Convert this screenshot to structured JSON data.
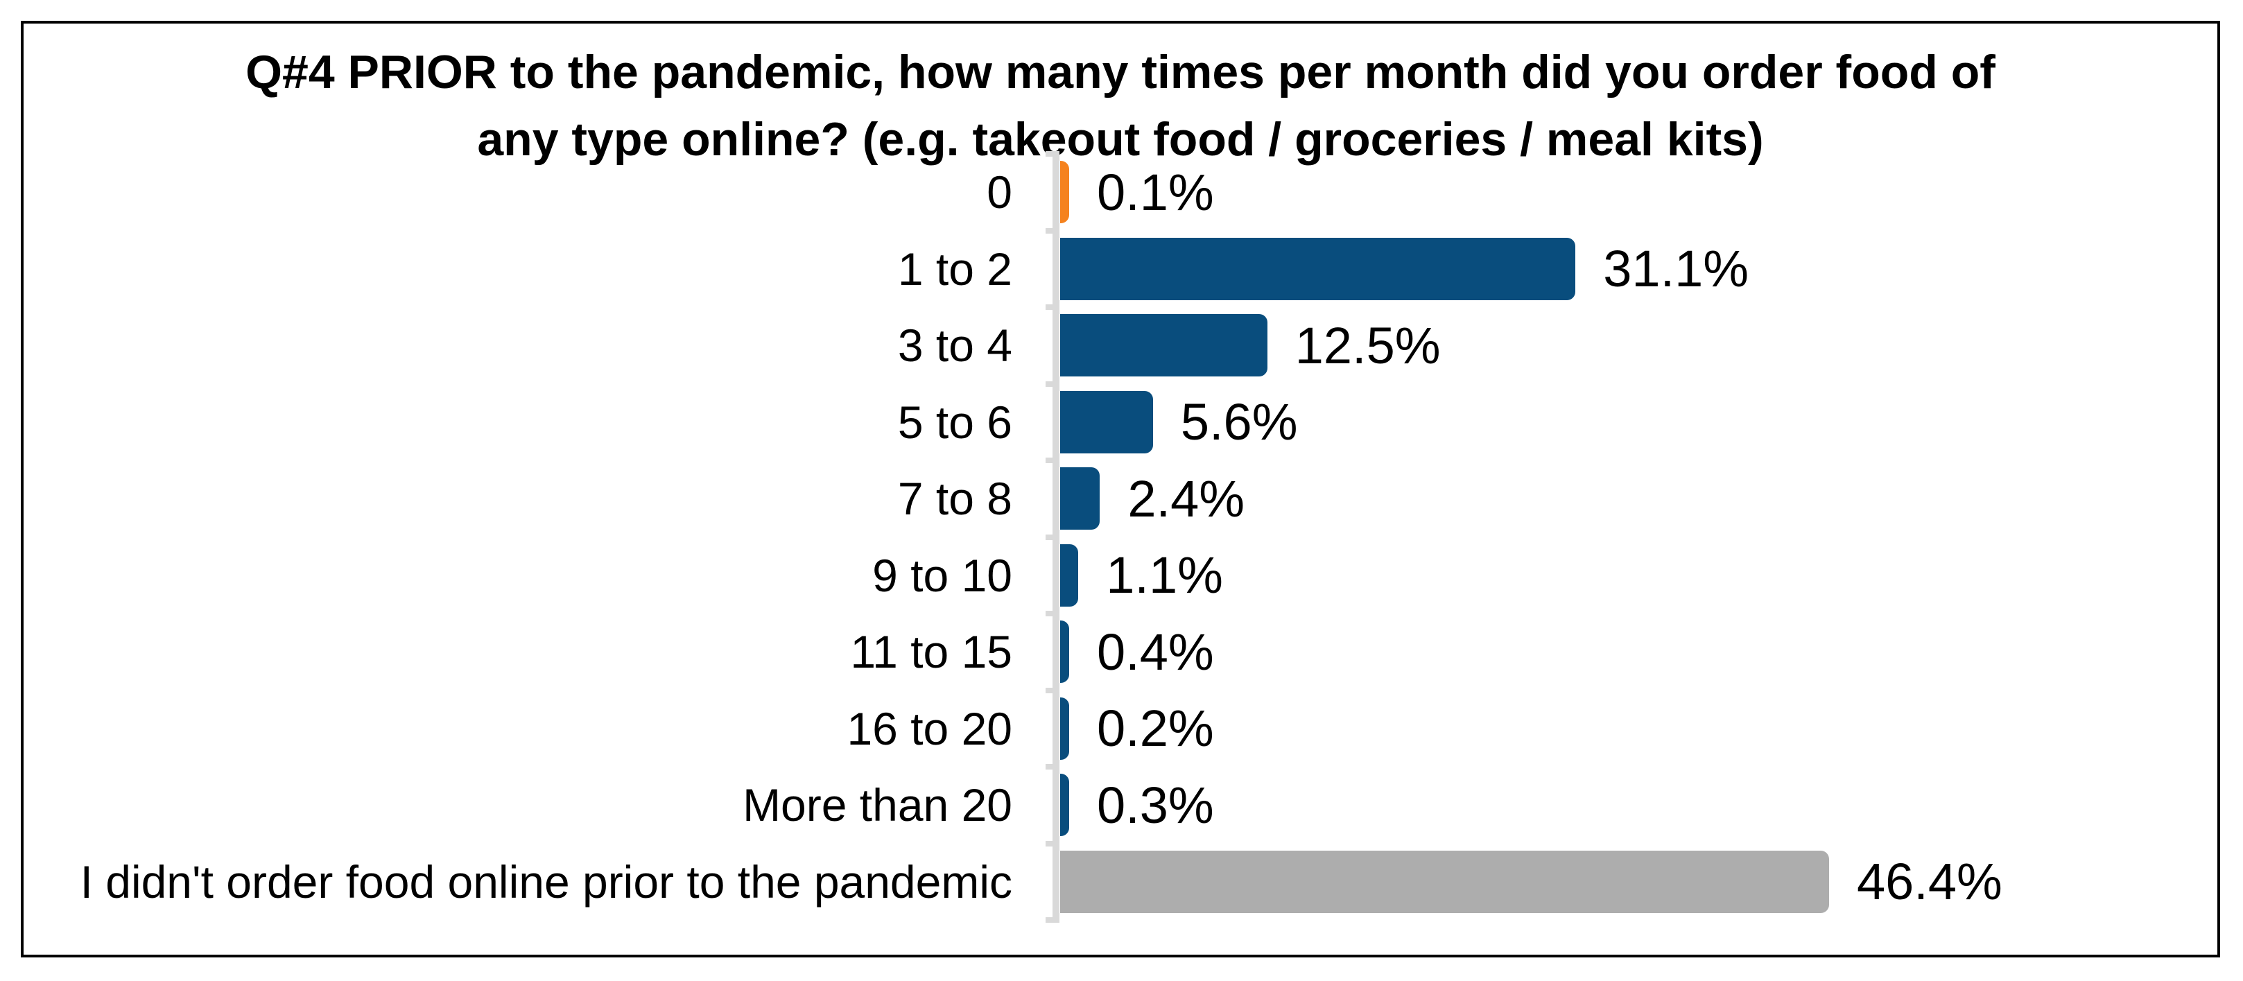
{
  "chart_data": {
    "type": "bar",
    "orientation": "horizontal",
    "title": "Q#4 PRIOR to the pandemic, how many times per month did you order food of any type online? (e.g. takeout food / groceries / meal kits)",
    "title_lines": [
      "Q#4 PRIOR to the pandemic, how many times per month did you order food of",
      "any type online? (e.g. takeout food / groceries / meal kits)"
    ],
    "categories": [
      "0",
      "1 to 2",
      "3 to 4",
      "5 to 6",
      "7 to 8",
      "9 to 10",
      "11 to 15",
      "16 to 20",
      "More than 20",
      "I didn't order food online prior to the pandemic"
    ],
    "values": [
      0.1,
      31.1,
      12.5,
      5.6,
      2.4,
      1.1,
      0.4,
      0.2,
      0.3,
      46.4
    ],
    "data_labels": [
      "0.1%",
      "31.1%",
      "12.5%",
      "5.6%",
      "2.4%",
      "1.1%",
      "0.4%",
      "0.2%",
      "0.3%",
      "46.4%"
    ],
    "bar_colors": [
      "#F5821E",
      "#094D7D",
      "#094D7D",
      "#094D7D",
      "#094D7D",
      "#094D7D",
      "#094D7D",
      "#094D7D",
      "#094D7D",
      "#ADADAD"
    ],
    "colors": {
      "primary_blue": "#094D7D",
      "accent_orange": "#F5821E",
      "neutral_gray": "#ADADAD",
      "axis_gray": "#D9D9D9",
      "text": "#000000",
      "border": "#000000"
    },
    "xlim": [
      0,
      50
    ],
    "grid": false,
    "legend": false,
    "value_labels_shown": true
  }
}
